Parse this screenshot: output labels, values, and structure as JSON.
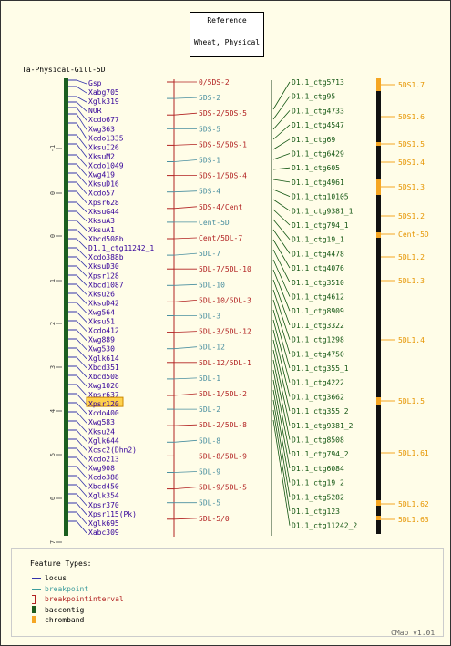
{
  "reference": {
    "line1": "Reference",
    "line2": "Wheat, Physical"
  },
  "map_title": "Ta-Physical-Gill-5D",
  "scale_ticks": [
    "-1",
    "0",
    "0",
    "1",
    "2",
    "3",
    "4",
    "5",
    "6",
    "7"
  ],
  "markers": [
    "Gsp",
    "Xabg705",
    "Xglk319",
    "NOR",
    "Xcdo677",
    "Xwg363",
    "Xcdo1335",
    "XksuI26",
    "XksuM2",
    "Xcdo1049",
    "Xwg419",
    "XksuD16",
    "Xcdo57",
    "Xpsr628",
    "XksuG44",
    "XksuA3",
    "XksuA1",
    "Xbcd508b",
    "D1.1_ctg11242_1",
    "Xcdo388b",
    "XksuD30",
    "Xpsr128",
    "Xbcd1087",
    "Xksu26",
    "XksuD42",
    "Xwg564",
    "Xksu51",
    "Xcdo412",
    "Xwg889",
    "Xwg530",
    "Xglk614",
    "Xbcd351",
    "Xbcd508",
    "Xwg1026",
    "Xpsr637",
    "Xpsr120",
    "Xcdo400",
    "Xwg583",
    "Xksu24",
    "Xglk644",
    "Xcsc2(Dhn2)",
    "Xcdo213",
    "Xwg908",
    "Xcdo388",
    "Xbcd450",
    "Xglk354",
    "Xpsr370",
    "Xpsr115(Pk)",
    "Xglk695",
    "Xabc309"
  ],
  "highlighted_marker": "Xpsr120",
  "breakpoints": [
    "0/5DS-2",
    "5DS-2",
    "5DS-2/5DS-5",
    "5DS-5",
    "5DS-5/5DS-1",
    "5DS-1",
    "5DS-1/5DS-4",
    "5DS-4",
    "5DS-4/Cent",
    "Cent-5D",
    "Cent/5DL-7",
    "5DL-7",
    "5DL-7/5DL-10",
    "5DL-10",
    "5DL-10/5DL-3",
    "5DL-3",
    "5DL-3/5DL-12",
    "5DL-12",
    "5DL-12/5DL-1",
    "5DL-1",
    "5DL-1/5DL-2",
    "5DL-2",
    "5DL-2/5DL-8",
    "5DL-8",
    "5DL-8/5DL-9",
    "5DL-9",
    "5DL-9/5DL-5",
    "5DL-5",
    "5DL-5/0"
  ],
  "contigs": [
    "D1.1_ctg5713",
    "D1.1_ctg95",
    "D1.1_ctg4733",
    "D1.1_ctg4547",
    "D1.1_ctg69",
    "D1.1_ctg6429",
    "D1.1_ctg605",
    "D1.1_ctg4961",
    "D1.1_ctg10105",
    "D1.1_ctg9381_1",
    "D1.1_ctg794_1",
    "D1.1_ctg19_1",
    "D1.1_ctg4478",
    "D1.1_ctg4076",
    "D1.1_ctg3510",
    "D1.1_ctg4612",
    "D1.1_ctg8909",
    "D1.1_ctg3322",
    "D1.1_ctg1298",
    "D1.1_ctg4750",
    "D1.1_ctg355_1",
    "D1.1_ctg4222",
    "D1.1_ctg3662",
    "D1.1_ctg355_2",
    "D1.1_ctg9381_2",
    "D1.1_ctg8508",
    "D1.1_ctg794_2",
    "D1.1_ctg6084",
    "D1.1_ctg19_2",
    "D1.1_ctg5282",
    "D1.1_ctg123",
    "D1.1_ctg11242_2"
  ],
  "chrombands": [
    "5DS1.7",
    "5DS1.6",
    "5DS1.5",
    "5DS1.4",
    "5DS1.3",
    "5DS1.2",
    "Cent-5D",
    "5DL1.2",
    "5DL1.3",
    "5DL1.4",
    "5DL1.5",
    "5DL1.61",
    "5DL1.62",
    "5DL1.63"
  ],
  "legend": {
    "title": "Feature Types:",
    "items": [
      {
        "label": "locus",
        "color": "#3333aa"
      },
      {
        "label": "breakpoint",
        "color": "#3c9c9c"
      },
      {
        "label": "breakpointinterval",
        "color": "#b22222"
      },
      {
        "label": "baccontig",
        "color": "#1e5c1e"
      },
      {
        "label": "chromband",
        "color": "#f5a623"
      }
    ]
  },
  "footer": "CMap v1.01",
  "colors": {
    "locus": "#330099",
    "breakpoint_text": "#4a8fa0",
    "interval_text": "#b22222",
    "contig_text": "#115511",
    "band_text": "#e69500",
    "backbone": "#1b5e20"
  }
}
